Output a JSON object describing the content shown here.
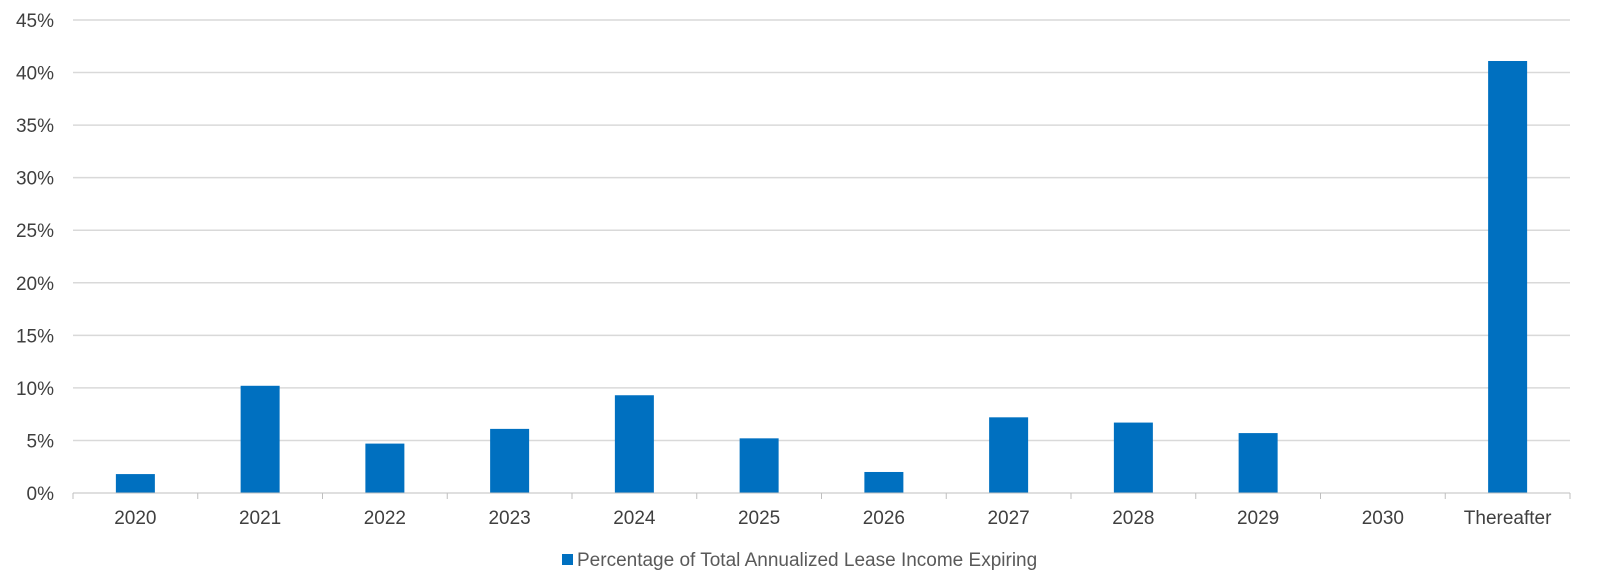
{
  "chart_data": {
    "type": "bar",
    "categories": [
      "2020",
      "2021",
      "2022",
      "2023",
      "2024",
      "2025",
      "2026",
      "2027",
      "2028",
      "2029",
      "2030",
      "Thereafter"
    ],
    "series": [
      {
        "name": "Percentage of Total Annualized Lease Income Expiring",
        "values": [
          1.8,
          10.2,
          4.7,
          6.1,
          9.3,
          5.2,
          2.0,
          7.2,
          6.7,
          5.7,
          0.0,
          41.1
        ],
        "color": "#0070C0"
      }
    ],
    "ylim": [
      0,
      45
    ],
    "yticks": [
      "0%",
      "5%",
      "10%",
      "15%",
      "20%",
      "25%",
      "30%",
      "35%",
      "40%",
      "45%"
    ],
    "ytick_values": [
      0,
      5,
      10,
      15,
      20,
      25,
      30,
      35,
      40,
      45
    ],
    "grid": true,
    "legend_position": "bottom",
    "gridline_color": "#D9D9D9"
  }
}
